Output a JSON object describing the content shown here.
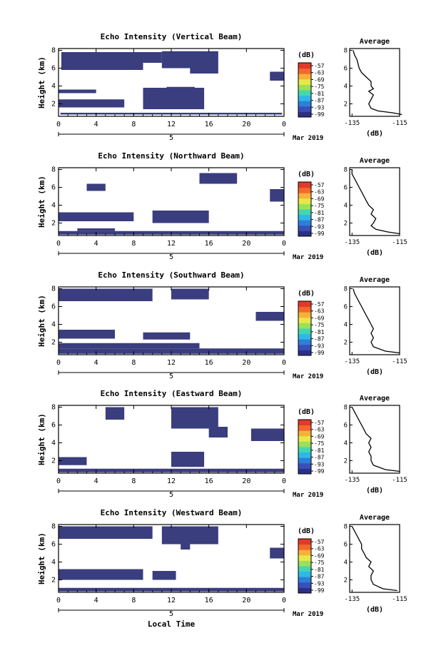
{
  "figure": {
    "xlabel": "Local Time",
    "date_label": "Mar 2019",
    "cbar_unit": "(dB)",
    "avg_title": "Average",
    "avg_xlabel": "(dB)"
  },
  "colors": {
    "echo": "#3a3d7e",
    "colormap": [
      "#2c2f86",
      "#3a4fb8",
      "#2e7fd8",
      "#2fb7e8",
      "#45d6b0",
      "#9be05a",
      "#e6e84a",
      "#f7b13a",
      "#f26a2a",
      "#e23a2a"
    ]
  },
  "chart_data": [
    {
      "type": "heatmap",
      "title": "Echo Intensity (Vertical Beam)",
      "ylabel": "Height (km)",
      "x_ticks": [
        "0",
        "4",
        "8",
        "12",
        "16",
        "20",
        "0"
      ],
      "day_tick": "5",
      "xlim": [
        0,
        24
      ],
      "y_ticks": [
        "2",
        "4",
        "6",
        "8"
      ],
      "ylim": [
        0.6,
        8.2
      ],
      "colorbar": {
        "unit": "(dB)",
        "ticks": [
          "-57",
          "-63",
          "-69",
          "-75",
          "-81",
          "-87",
          "-93",
          "-99"
        ]
      },
      "echo_regions": [
        {
          "t": [
            0.2,
            23.8
          ],
          "h": [
            0.8,
            1.0
          ]
        },
        {
          "t": [
            0,
            7
          ],
          "h": [
            1.6,
            2.5
          ]
        },
        {
          "t": [
            0,
            4
          ],
          "h": [
            3.2,
            3.6
          ]
        },
        {
          "t": [
            9,
            15.5
          ],
          "h": [
            1.4,
            3.8
          ]
        },
        {
          "t": [
            11.5,
            14.5
          ],
          "h": [
            3.4,
            3.9
          ]
        },
        {
          "t": [
            0.3,
            9
          ],
          "h": [
            5.8,
            7.8
          ]
        },
        {
          "t": [
            9,
            11
          ],
          "h": [
            6.6,
            7.8
          ]
        },
        {
          "t": [
            11,
            17
          ],
          "h": [
            6.0,
            7.9
          ]
        },
        {
          "t": [
            14,
            17
          ],
          "h": [
            5.4,
            6.0
          ]
        },
        {
          "t": [
            22.5,
            24
          ],
          "h": [
            4.6,
            5.6
          ]
        }
      ],
      "average_profile": {
        "xlim": [
          -136,
          -115
        ],
        "x_ticks": [
          "-135",
          "-115"
        ],
        "y_ticks": [
          "2",
          "4",
          "6",
          "8"
        ],
        "height": [
          0.8,
          1.0,
          1.2,
          1.5,
          2.0,
          2.5,
          3.0,
          3.4,
          3.7,
          4.0,
          4.5,
          5.0,
          5.5,
          6.0,
          6.5,
          7.0,
          7.5,
          8.0
        ],
        "db": [
          -114,
          -118,
          -124,
          -127,
          -128,
          -127,
          -126,
          -128,
          -126,
          -127,
          -127,
          -129,
          -131,
          -132,
          -132.5,
          -133,
          -134,
          -134.5
        ]
      }
    },
    {
      "type": "heatmap",
      "title": "Echo Intensity (Northward Beam)",
      "ylabel": "Height (km)",
      "x_ticks": [
        "0",
        "4",
        "8",
        "12",
        "16",
        "20",
        "0"
      ],
      "day_tick": "5",
      "xlim": [
        0,
        24
      ],
      "y_ticks": [
        "2",
        "4",
        "6",
        "8"
      ],
      "ylim": [
        0.6,
        8.2
      ],
      "colorbar": {
        "unit": "(dB)",
        "ticks": [
          "-57",
          "-63",
          "-69",
          "-75",
          "-81",
          "-87",
          "-93",
          "-99"
        ]
      },
      "echo_regions": [
        {
          "t": [
            0,
            24
          ],
          "h": [
            0.7,
            1.1
          ]
        },
        {
          "t": [
            2,
            6
          ],
          "h": [
            1.1,
            1.4
          ]
        },
        {
          "t": [
            0,
            8
          ],
          "h": [
            2.2,
            3.2
          ]
        },
        {
          "t": [
            10,
            16
          ],
          "h": [
            2.0,
            3.4
          ]
        },
        {
          "t": [
            3,
            5
          ],
          "h": [
            5.6,
            6.4
          ]
        },
        {
          "t": [
            15,
            19
          ],
          "h": [
            6.4,
            7.6
          ]
        },
        {
          "t": [
            22.5,
            24
          ],
          "h": [
            4.4,
            5.8
          ]
        }
      ],
      "average_profile": {
        "xlim": [
          -136,
          -115
        ],
        "x_ticks": [
          "-135",
          "-115"
        ],
        "y_ticks": [
          "2",
          "4",
          "6",
          "8"
        ],
        "height": [
          0.8,
          1.0,
          1.3,
          1.7,
          2.0,
          2.5,
          3.0,
          3.5,
          4.0,
          4.5,
          5.0,
          5.5,
          6.0,
          6.5,
          7.0,
          7.5,
          8.0
        ],
        "db": [
          -115,
          -120,
          -125,
          -127,
          -126,
          -125,
          -127,
          -126,
          -128,
          -129,
          -130,
          -131,
          -132,
          -133,
          -134,
          -135,
          -135
        ]
      }
    },
    {
      "type": "heatmap",
      "title": "Echo Intensity (Southward Beam)",
      "ylabel": "Height (km)",
      "x_ticks": [
        "0",
        "4",
        "8",
        "12",
        "16",
        "20",
        "0"
      ],
      "day_tick": "5",
      "xlim": [
        0,
        24
      ],
      "y_ticks": [
        "2",
        "4",
        "6",
        "8"
      ],
      "ylim": [
        0.6,
        8.2
      ],
      "colorbar": {
        "unit": "(dB)",
        "ticks": [
          "-57",
          "-63",
          "-69",
          "-75",
          "-81",
          "-87",
          "-93",
          "-99"
        ]
      },
      "echo_regions": [
        {
          "t": [
            0,
            24
          ],
          "h": [
            0.7,
            1.3
          ]
        },
        {
          "t": [
            0,
            15
          ],
          "h": [
            1.3,
            1.9
          ]
        },
        {
          "t": [
            0,
            6
          ],
          "h": [
            2.4,
            3.4
          ]
        },
        {
          "t": [
            9,
            14
          ],
          "h": [
            2.3,
            3.1
          ]
        },
        {
          "t": [
            0,
            10
          ],
          "h": [
            6.6,
            8.0
          ]
        },
        {
          "t": [
            12,
            16
          ],
          "h": [
            6.8,
            8.0
          ]
        },
        {
          "t": [
            21,
            24
          ],
          "h": [
            4.4,
            5.4
          ]
        }
      ],
      "average_profile": {
        "xlim": [
          -136,
          -115
        ],
        "x_ticks": [
          "-135",
          "-115"
        ],
        "y_ticks": [
          "2",
          "4",
          "6",
          "8"
        ],
        "height": [
          0.8,
          1.0,
          1.5,
          2.0,
          2.5,
          3.0,
          3.5,
          4.0,
          4.5,
          5.0,
          5.5,
          6.0,
          6.5,
          7.0,
          7.5,
          8.0
        ],
        "db": [
          -115,
          -121,
          -126,
          -127,
          -126,
          -127,
          -126,
          -127,
          -128,
          -129,
          -130,
          -131,
          -132,
          -133,
          -134,
          -134.5
        ]
      }
    },
    {
      "type": "heatmap",
      "title": "Echo Intensity (Eastward Beam)",
      "ylabel": "Height (km)",
      "x_ticks": [
        "0",
        "4",
        "8",
        "12",
        "16",
        "20",
        "0"
      ],
      "day_tick": "5",
      "xlim": [
        0,
        24
      ],
      "y_ticks": [
        "2",
        "4",
        "6",
        "8"
      ],
      "ylim": [
        0.6,
        8.2
      ],
      "colorbar": {
        "unit": "(dB)",
        "ticks": [
          "-57",
          "-63",
          "-69",
          "-75",
          "-81",
          "-87",
          "-93",
          "-99"
        ]
      },
      "echo_regions": [
        {
          "t": [
            0,
            24
          ],
          "h": [
            0.7,
            1.1
          ]
        },
        {
          "t": [
            0,
            3
          ],
          "h": [
            1.5,
            2.4
          ]
        },
        {
          "t": [
            12,
            15.5
          ],
          "h": [
            1.3,
            3.0
          ]
        },
        {
          "t": [
            5,
            7
          ],
          "h": [
            6.6,
            8.0
          ]
        },
        {
          "t": [
            12,
            17
          ],
          "h": [
            5.6,
            8.0
          ]
        },
        {
          "t": [
            16,
            18
          ],
          "h": [
            4.6,
            5.8
          ]
        },
        {
          "t": [
            20.5,
            24
          ],
          "h": [
            4.2,
            5.6
          ]
        }
      ],
      "average_profile": {
        "xlim": [
          -136,
          -115
        ],
        "x_ticks": [
          "-135",
          "-115"
        ],
        "y_ticks": [
          "2",
          "4",
          "6",
          "8"
        ],
        "height": [
          0.8,
          1.0,
          1.5,
          2.0,
          2.5,
          3.0,
          3.5,
          4.0,
          4.5,
          5.0,
          5.5,
          6.0,
          6.5,
          7.0,
          7.5,
          8.0
        ],
        "db": [
          -115,
          -121,
          -126,
          -127,
          -127,
          -128,
          -127,
          -128,
          -127,
          -129,
          -130,
          -131,
          -132,
          -133,
          -134,
          -135
        ]
      }
    },
    {
      "type": "heatmap",
      "title": "Echo Intensity (Westward Beam)",
      "ylabel": "Height (km)",
      "x_ticks": [
        "0",
        "4",
        "8",
        "12",
        "16",
        "20",
        "0"
      ],
      "day_tick": "5",
      "xlim": [
        0,
        24
      ],
      "y_ticks": [
        "2",
        "4",
        "6",
        "8"
      ],
      "ylim": [
        0.6,
        8.2
      ],
      "colorbar": {
        "unit": "(dB)",
        "ticks": [
          "-57",
          "-63",
          "-69",
          "-75",
          "-81",
          "-87",
          "-93",
          "-99"
        ]
      },
      "echo_regions": [
        {
          "t": [
            0,
            24
          ],
          "h": [
            0.7,
            1.1
          ]
        },
        {
          "t": [
            0,
            9
          ],
          "h": [
            2.0,
            3.2
          ]
        },
        {
          "t": [
            10,
            12.5
          ],
          "h": [
            2.0,
            3.0
          ]
        },
        {
          "t": [
            0,
            10
          ],
          "h": [
            6.6,
            8.0
          ]
        },
        {
          "t": [
            11,
            17
          ],
          "h": [
            6.0,
            8.0
          ]
        },
        {
          "t": [
            13,
            14
          ],
          "h": [
            5.4,
            6.0
          ]
        },
        {
          "t": [
            22.5,
            24
          ],
          "h": [
            4.4,
            5.6
          ]
        }
      ],
      "average_profile": {
        "xlim": [
          -136,
          -115
        ],
        "x_ticks": [
          "-135",
          "-115"
        ],
        "y_ticks": [
          "2",
          "4",
          "6",
          "8"
        ],
        "height": [
          0.8,
          1.0,
          1.5,
          2.0,
          2.5,
          3.0,
          3.5,
          4.0,
          4.5,
          5.0,
          5.5,
          6.0,
          6.5,
          7.0,
          7.5,
          8.0
        ],
        "db": [
          -116,
          -122,
          -126,
          -127,
          -127,
          -126,
          -128,
          -127,
          -129,
          -130,
          -131,
          -131,
          -132,
          -133,
          -134,
          -135
        ]
      }
    }
  ]
}
